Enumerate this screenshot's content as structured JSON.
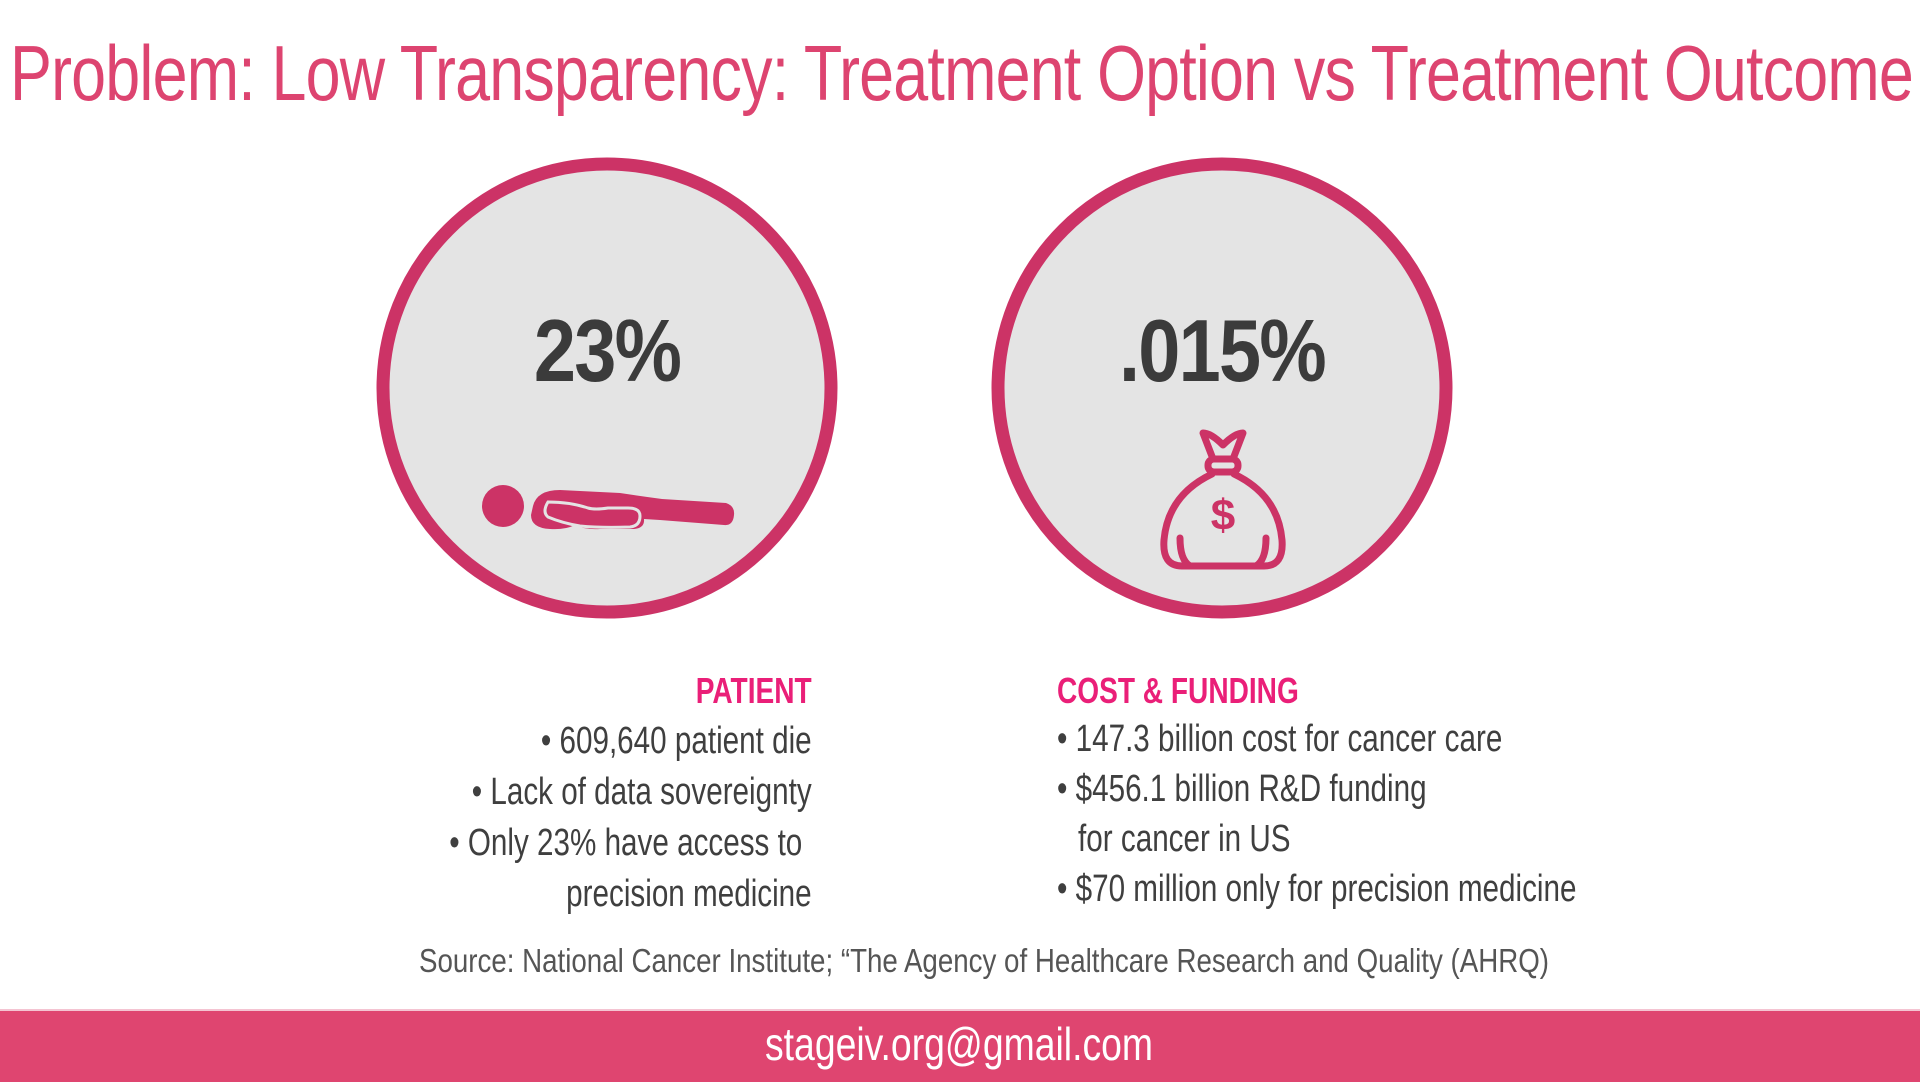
{
  "title": "Problem: Low Transparency: Treatment Option vs Treatment Outcome",
  "patient": {
    "stat": "23%",
    "icon": "person-lying-icon",
    "heading": "PATIENT",
    "bullets": [
      "• 609,640 patient die",
      "• Lack of data sovereignty",
      "• Only 23% have access to",
      "precision medicine"
    ]
  },
  "cost": {
    "stat": ".015%",
    "icon": "money-bag-icon",
    "heading": "COST & FUNDING",
    "bullets": [
      "• 147.3 billion cost for cancer care",
      "• $456.1 billion R&D funding",
      "for cancer in US",
      "• $70 million only for precision medicine"
    ]
  },
  "source": "Source: National Cancer Institute; “The Agency of Healthcare Research and Quality (AHRQ)",
  "footer": {
    "email": "stageiv.org@gmail.com"
  },
  "colors": {
    "accent": "#dd4470",
    "circle_stroke": "#cc3366",
    "circle_fill": "#e4e4e4",
    "heading": "#ea1f78"
  }
}
